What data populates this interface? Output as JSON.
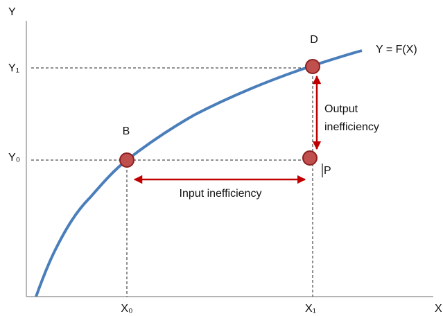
{
  "axes": {
    "x": "X",
    "y": "Y"
  },
  "ticks": {
    "x0": "X₀",
    "x1": "X₁",
    "y0": "Y₀",
    "y1": "Y₁"
  },
  "curve": {
    "label": "Y = F(X)"
  },
  "points": {
    "b": "B",
    "d": "D",
    "p": "P"
  },
  "arrows": {
    "input": "Input inefficiency",
    "output": [
      "Output",
      "inefficiency"
    ]
  }
}
